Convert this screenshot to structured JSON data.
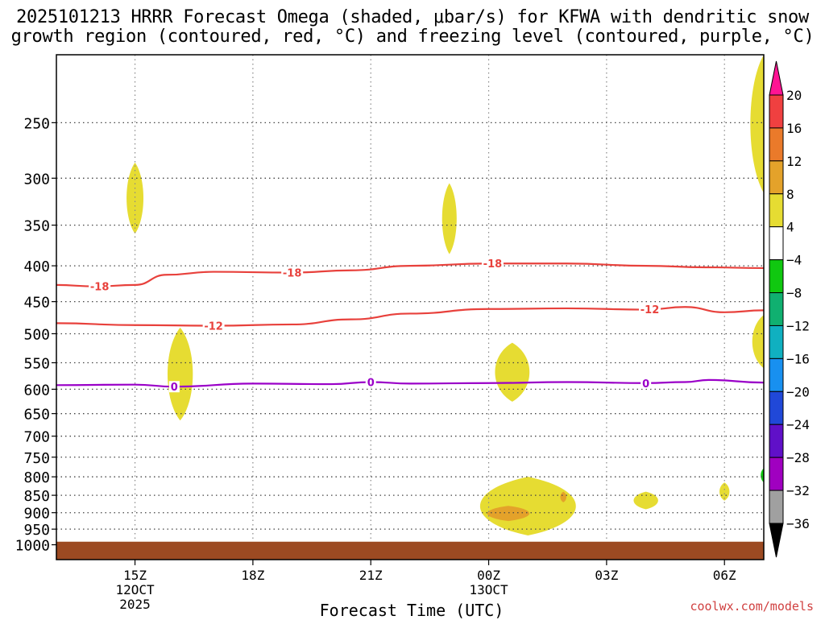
{
  "chart_data": {
    "type": "heatmap",
    "title": "2025101213 HRRR Forecast Omega (shaded, μbar/s) for KFWA with dendritic snow growth region (contoured, red, °C) and freezing level (contoured, purple, °C)",
    "title_lines": [
      "2025101213 HRRR Forecast Omega (shaded, μbar/s) for KFWA with dendritic snow",
      "growth region (contoured, red, °C) and freezing level (contoured, purple, °C)"
    ],
    "xlabel": "Forecast Time (UTC)",
    "ylabel": "",
    "x_unit": "hours after 2025-10-12 13Z",
    "xlim": [
      0,
      18
    ],
    "ylim": [
      1050,
      200
    ],
    "y_scale": "log-pressure (inverted)",
    "grid": true,
    "x_ticks": [
      {
        "x": 2,
        "label": "15Z",
        "sub": [
          "12OCT",
          "2025"
        ]
      },
      {
        "x": 5,
        "label": "18Z",
        "sub": []
      },
      {
        "x": 8,
        "label": "21Z",
        "sub": []
      },
      {
        "x": 11,
        "label": "00Z",
        "sub": [
          "13OCT"
        ]
      },
      {
        "x": 14,
        "label": "03Z",
        "sub": []
      },
      {
        "x": 17,
        "label": "06Z",
        "sub": []
      }
    ],
    "y_ticks": [
      250,
      300,
      350,
      400,
      450,
      500,
      550,
      600,
      650,
      700,
      750,
      800,
      850,
      900,
      950,
      1000
    ],
    "contours": [
      {
        "label": "-18",
        "color": "#e8413c",
        "points": [
          [
            0,
            426
          ],
          [
            1.0,
            428
          ],
          [
            2.0,
            426
          ],
          [
            2.8,
            412
          ],
          [
            4.0,
            408
          ],
          [
            6.0,
            409
          ],
          [
            7.5,
            406
          ],
          [
            9.0,
            400
          ],
          [
            11.0,
            397
          ],
          [
            13.0,
            397
          ],
          [
            15.0,
            400
          ],
          [
            16.5,
            402
          ],
          [
            18.0,
            403
          ]
        ],
        "label_x": [
          1.1,
          6.0,
          11.1
        ]
      },
      {
        "label": "-12",
        "color": "#e8413c",
        "points": [
          [
            0,
            483
          ],
          [
            2.0,
            486
          ],
          [
            4.0,
            487
          ],
          [
            6.0,
            485
          ],
          [
            7.5,
            477
          ],
          [
            9.0,
            468
          ],
          [
            11.0,
            461
          ],
          [
            13.0,
            460
          ],
          [
            15.0,
            462
          ],
          [
            16.0,
            458
          ],
          [
            17.0,
            466
          ],
          [
            18.0,
            463
          ]
        ],
        "label_x": [
          4.0,
          15.1
        ]
      },
      {
        "label": "0",
        "color": "#9a00c8",
        "points": [
          [
            0,
            592
          ],
          [
            2.0,
            591
          ],
          [
            3.0,
            595
          ],
          [
            5.0,
            589
          ],
          [
            7.0,
            590
          ],
          [
            8.0,
            586
          ],
          [
            9.0,
            589
          ],
          [
            11.0,
            588
          ],
          [
            13.0,
            586
          ],
          [
            15.0,
            588
          ],
          [
            16.0,
            586
          ],
          [
            16.6,
            582
          ],
          [
            18.0,
            587
          ]
        ],
        "label_x": [
          3.0,
          8.0,
          15.0
        ]
      }
    ],
    "shaded_regions": [
      {
        "level": "4 to 8",
        "color": "#e6dc32",
        "cx": 2.0,
        "p_top": 285,
        "p_bottom": 360,
        "half_width": 0.22
      },
      {
        "level": "4 to 8",
        "color": "#e6dc32",
        "cx": 3.15,
        "p_top": 490,
        "p_bottom": 665,
        "half_width": 0.33
      },
      {
        "level": "4 to 8",
        "color": "#e6dc32",
        "cx": 10.0,
        "p_top": 305,
        "p_bottom": 385,
        "half_width": 0.19
      },
      {
        "level": "4 to 8",
        "color": "#e6dc32",
        "cx": 11.6,
        "p_top": 515,
        "p_bottom": 625,
        "half_width": 0.45
      },
      {
        "level": "4 to 8",
        "color": "#e6dc32",
        "cx": 12.0,
        "p_top": 800,
        "p_bottom": 970,
        "half_width": 1.25
      },
      {
        "level": "8 to 12",
        "color": "#e4a22a",
        "cx": 11.5,
        "p_top": 880,
        "p_bottom": 925,
        "half_width": 0.55
      },
      {
        "level": "8 to 12",
        "color": "#e4a22a",
        "cx": 12.9,
        "p_top": 840,
        "p_bottom": 870,
        "half_width": 0.08
      },
      {
        "level": "4 to 8",
        "color": "#e6dc32",
        "cx": 15.0,
        "p_top": 840,
        "p_bottom": 890,
        "half_width": 0.32
      },
      {
        "level": "4 to 8",
        "color": "#e6dc32",
        "cx": 17.0,
        "p_top": 815,
        "p_bottom": 865,
        "half_width": 0.13
      },
      {
        "level": "4 to 8",
        "color": "#e6dc32",
        "cx": 18.0,
        "p_top": 200,
        "p_bottom": 315,
        "half_width": 0.35
      },
      {
        "level": "4 to 8",
        "color": "#e6dc32",
        "cx": 18.0,
        "p_top": 470,
        "p_bottom": 560,
        "half_width": 0.3
      },
      {
        "level": "-8 to -4",
        "color": "#10c810",
        "cx": 18.0,
        "p_top": 778,
        "p_bottom": 815,
        "half_width": 0.08
      }
    ],
    "terrain": {
      "color": "#9c4a22",
      "p_top": 990
    }
  },
  "colorbar": {
    "labels": [
      "20",
      "16",
      "12",
      "8",
      "4",
      "−4",
      "−8",
      "−12",
      "−16",
      "−20",
      "−24",
      "−28",
      "−32",
      "−36"
    ],
    "colors": [
      "#ff1493",
      "#f04040",
      "#ea7a2a",
      "#e4a22a",
      "#e6dc32",
      "#ffffff",
      "#10c810",
      "#10b070",
      "#10b0c0",
      "#1890f0",
      "#2048d8",
      "#6010c8",
      "#a000c0",
      "#a0a0a0",
      "#000000"
    ]
  },
  "watermark": "coolwx.com/models"
}
